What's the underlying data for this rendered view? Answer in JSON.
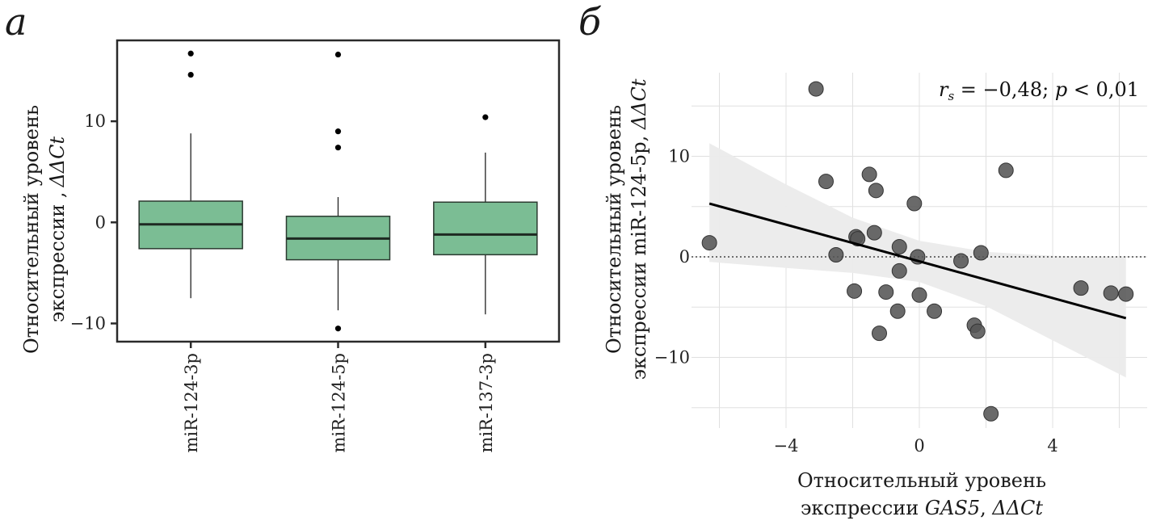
{
  "panels": {
    "a": {
      "letter": "а"
    },
    "b": {
      "letter": "б"
    }
  },
  "chart_data": [
    {
      "type": "box",
      "panel": "а",
      "categories": [
        "miR-124-3p",
        "miR-124-5p",
        "miR-137-3p"
      ],
      "series": [
        {
          "name": "miR-124-3p",
          "whisker_low": -7.5,
          "q1": -2.6,
          "median": -0.2,
          "q3": 2.1,
          "whisker_high": 8.8,
          "outliers": [
            16.7,
            14.6
          ]
        },
        {
          "name": "miR-124-5p",
          "whisker_low": -8.7,
          "q1": -3.7,
          "median": -1.6,
          "q3": 0.6,
          "whisker_high": 2.5,
          "outliers": [
            16.6,
            9.0,
            7.4,
            -10.5
          ]
        },
        {
          "name": "miR-137-3p",
          "whisker_low": -9.1,
          "q1": -3.2,
          "median": -1.2,
          "q3": 2.0,
          "whisker_high": 6.9,
          "outliers": [
            10.4
          ]
        }
      ],
      "ylabel_line1": "Относительный уровень",
      "ylabel_line2": "экспрессии ,",
      "ylabel_italic": "ΔΔCt",
      "xlabel": "",
      "yticks": [
        -10,
        0,
        10
      ],
      "ytick_labels": [
        "−10",
        "0",
        "10"
      ],
      "ylim": [
        -11.8,
        18
      ],
      "box_color": "#7bbd94",
      "grid": false
    },
    {
      "type": "scatter",
      "panel": "б",
      "points": [
        [
          -6.3,
          1.4
        ],
        [
          -3.1,
          16.7
        ],
        [
          -2.8,
          7.5
        ],
        [
          -2.5,
          0.2
        ],
        [
          -1.9,
          2.0
        ],
        [
          -1.85,
          1.8
        ],
        [
          -1.95,
          -3.4
        ],
        [
          -1.5,
          8.2
        ],
        [
          -1.3,
          6.6
        ],
        [
          -1.35,
          2.4
        ],
        [
          -1.2,
          -7.6
        ],
        [
          -1.0,
          -3.5
        ],
        [
          -0.6,
          1.0
        ],
        [
          -0.6,
          -1.4
        ],
        [
          -0.65,
          -5.4
        ],
        [
          -0.15,
          5.3
        ],
        [
          -0.05,
          0.0
        ],
        [
          0.0,
          -3.8
        ],
        [
          0.45,
          -5.4
        ],
        [
          1.25,
          -0.4
        ],
        [
          1.65,
          -6.8
        ],
        [
          1.75,
          -7.4
        ],
        [
          1.85,
          0.4
        ],
        [
          2.15,
          -15.6
        ],
        [
          2.6,
          8.6
        ],
        [
          4.85,
          -3.1
        ],
        [
          5.75,
          -3.6
        ],
        [
          6.2,
          -3.7
        ]
      ],
      "fit_line": {
        "x": [
          -6.3,
          6.2
        ],
        "y": [
          5.3,
          -6.1
        ]
      },
      "confidence_band": {
        "x": [
          -6.3,
          -4,
          -2,
          0,
          2,
          4,
          6.2
        ],
        "upper": [
          11.3,
          7.2,
          3.9,
          1.6,
          0.5,
          0.1,
          0.0
        ],
        "lower": [
          -0.5,
          -1.1,
          -1.6,
          -2.5,
          -4.9,
          -8.3,
          -12.0
        ]
      },
      "reference_line_y": 0,
      "xlabel_line1": "Относительный уровень",
      "xlabel_line2_prefix": "экспрессии ",
      "xlabel_gene": "GAS5",
      "xlabel_sep": ", ",
      "xlabel_italic": "ΔΔCt",
      "ylabel_line1": "Относительный уровень",
      "ylabel_line2": "экспрессии miR-124-5p, ",
      "ylabel_italic": "ΔΔCt",
      "xticks": [
        -4,
        0,
        4
      ],
      "xtick_labels": [
        "−4",
        "0",
        "4"
      ],
      "yticks": [
        -10,
        0,
        10
      ],
      "ytick_labels": [
        "−10",
        "0",
        "10"
      ],
      "xlim": [
        -6.5,
        6.9
      ],
      "ylim": [
        -17.2,
        17.7
      ],
      "annotation": {
        "r_symbol": "r",
        "r_sub": "s",
        "text": " = −0,48; ",
        "p_symbol": "p",
        "p_text": " < 0,01"
      },
      "grid": true,
      "point_color": "#555555"
    }
  ]
}
